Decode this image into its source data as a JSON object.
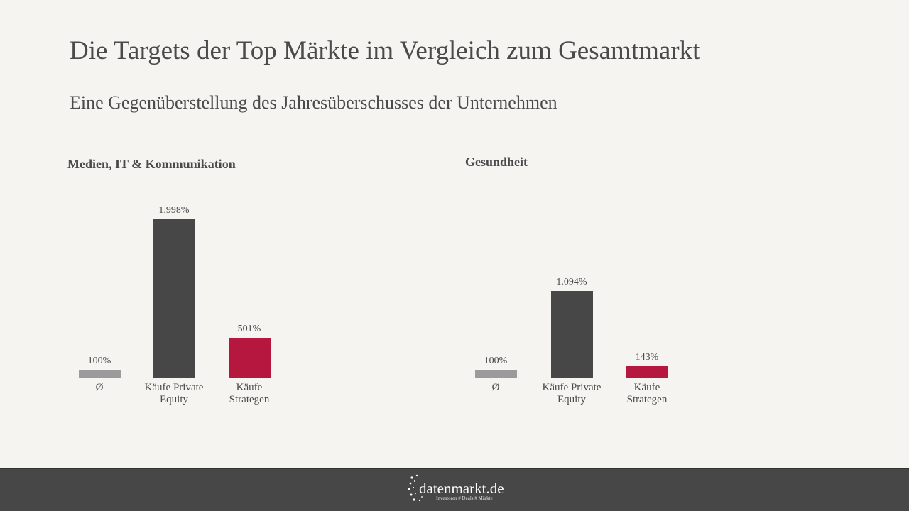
{
  "header": {
    "title": "Die Targets der Top Märkte im Vergleich zum Gesamtmarkt",
    "subtitle": "Eine Gegenüberstellung des Jahresüberschusses der Unternehmen"
  },
  "chart_data": [
    {
      "type": "bar",
      "title": "Medien, IT & Kommunikation",
      "categories": [
        "Ø",
        "Käufe Private Equity",
        "Käufe Strategen"
      ],
      "values": [
        100,
        1998,
        501
      ],
      "value_labels": [
        "100%",
        "1.998%",
        "501%"
      ],
      "colors": [
        "#9b9b9b",
        "#474747",
        "#b5173f"
      ]
    },
    {
      "type": "bar",
      "title": "Gesundheit",
      "categories": [
        "Ø",
        "Käufe Private Equity",
        "Käufe Strategen"
      ],
      "values": [
        100,
        1094,
        143
      ],
      "value_labels": [
        "100%",
        "1.094%",
        "143%"
      ],
      "colors": [
        "#9b9b9b",
        "#474747",
        "#b5173f"
      ]
    }
  ],
  "footer": {
    "logo": "datenmarkt.de",
    "tagline": "Investoren # Deals # Märkte"
  }
}
